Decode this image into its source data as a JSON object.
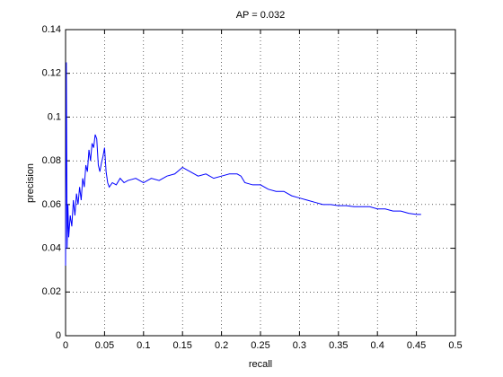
{
  "chart_data": {
    "type": "line",
    "title": "AP = 0.032",
    "xlabel": "recall",
    "ylabel": "precision",
    "x": [
      0,
      0.001,
      0.002,
      0.003,
      0.004,
      0.006,
      0.008,
      0.01,
      0.012,
      0.014,
      0.016,
      0.018,
      0.02,
      0.022,
      0.024,
      0.026,
      0.028,
      0.03,
      0.032,
      0.034,
      0.036,
      0.038,
      0.04,
      0.042,
      0.044,
      0.046,
      0.048,
      0.05,
      0.052,
      0.054,
      0.056,
      0.06,
      0.065,
      0.07,
      0.075,
      0.08,
      0.09,
      0.1,
      0.11,
      0.12,
      0.13,
      0.14,
      0.15,
      0.155,
      0.16,
      0.17,
      0.18,
      0.19,
      0.2,
      0.21,
      0.22,
      0.225,
      0.23,
      0.24,
      0.25,
      0.26,
      0.27,
      0.28,
      0.29,
      0.3,
      0.31,
      0.32,
      0.33,
      0.34,
      0.35,
      0.36,
      0.37,
      0.38,
      0.39,
      0.4,
      0.41,
      0.42,
      0.43,
      0.44,
      0.45,
      0.456
    ],
    "series": [
      {
        "color": "#0000ff",
        "values": [
          0.032,
          0.125,
          0.04,
          0.06,
          0.045,
          0.055,
          0.05,
          0.062,
          0.055,
          0.065,
          0.06,
          0.068,
          0.062,
          0.072,
          0.068,
          0.078,
          0.075,
          0.085,
          0.08,
          0.088,
          0.086,
          0.092,
          0.09,
          0.078,
          0.075,
          0.079,
          0.082,
          0.086,
          0.075,
          0.07,
          0.068,
          0.07,
          0.069,
          0.072,
          0.07,
          0.071,
          0.072,
          0.07,
          0.072,
          0.071,
          0.073,
          0.074,
          0.077,
          0.076,
          0.075,
          0.073,
          0.074,
          0.072,
          0.073,
          0.074,
          0.074,
          0.073,
          0.07,
          0.069,
          0.069,
          0.067,
          0.066,
          0.066,
          0.064,
          0.063,
          0.062,
          0.061,
          0.06,
          0.06,
          0.0595,
          0.0595,
          0.059,
          0.059,
          0.059,
          0.058,
          0.058,
          0.057,
          0.057,
          0.056,
          0.0555,
          0.0555
        ]
      }
    ],
    "xlim": [
      0,
      0.5
    ],
    "xticks": [
      0,
      0.05,
      0.1,
      0.15,
      0.2,
      0.25,
      0.3,
      0.35,
      0.4,
      0.45,
      0.5
    ],
    "ylim": [
      0,
      0.14
    ],
    "yticks": [
      0,
      0.02,
      0.04,
      0.06,
      0.08,
      0.1,
      0.12,
      0.14
    ],
    "grid": true
  }
}
